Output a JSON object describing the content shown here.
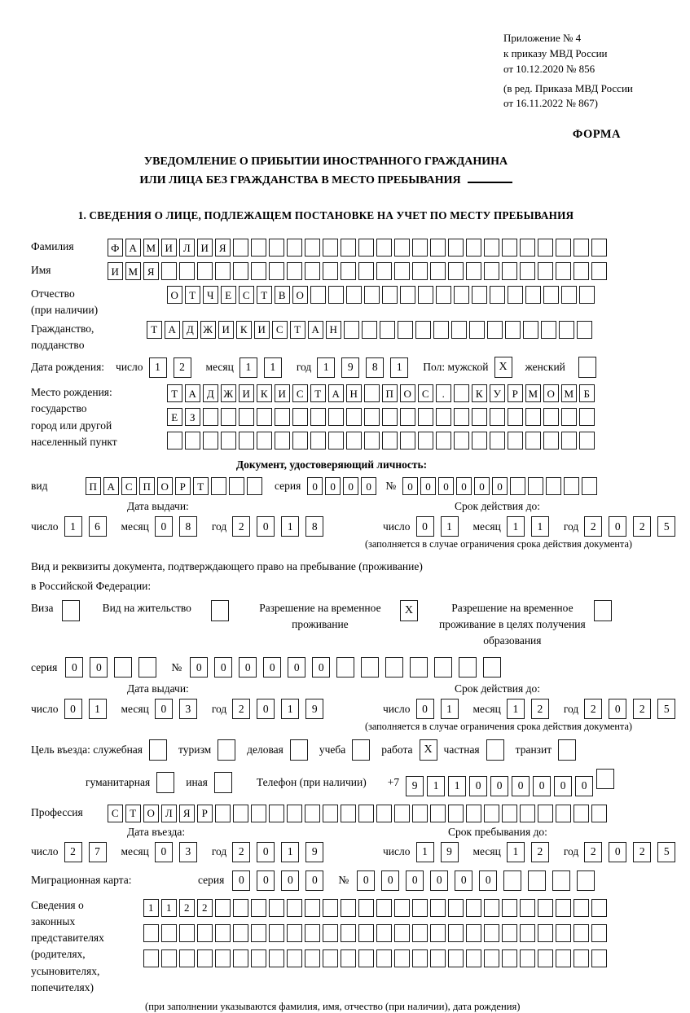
{
  "header": {
    "line1": "Приложение № 4",
    "line2": "к приказу МВД России",
    "line3": "от 10.12.2020 № 856",
    "line4": "(в ред. Приказа МВД России",
    "line5": "от 16.11.2022 № 867)",
    "form_label": "ФОРМА"
  },
  "title": {
    "line1": "УВЕДОМЛЕНИЕ О ПРИБЫТИИ ИНОСТРАННОГО ГРАЖДАНИНА",
    "line2": "ИЛИ ЛИЦА БЕЗ ГРАЖДАНСТВА В МЕСТО ПРЕБЫВАНИЯ"
  },
  "section1_heading": "1. СВЕДЕНИЯ О ЛИЦЕ, ПОДЛЕЖАЩЕМ ПОСТАНОВКЕ НА УЧЕТ ПО МЕСТУ ПРЕБЫВАНИЯ",
  "labels": {
    "day": "число",
    "month": "месяц",
    "year": "год",
    "series": "серия",
    "number": "№"
  },
  "surname": {
    "label": "Фамилия",
    "cells": {
      "text": "ФАМИЛИЯ",
      "count": 28
    }
  },
  "firstname": {
    "label": "Имя",
    "cells": {
      "text": "ИМЯ",
      "count": 28
    }
  },
  "patronymic": {
    "label1": "Отчество",
    "label2": "(при наличии)",
    "cells": {
      "text": "ОТЧЕСТВО",
      "count": 24
    }
  },
  "citizenship": {
    "label1": "Гражданство,",
    "label2": "подданство",
    "cells": {
      "text": "ТАДЖИКИСТАН",
      "count": 25
    }
  },
  "birth_date": {
    "label": "Дата рождения:",
    "day": "12",
    "month": "11",
    "year": "1981",
    "sex_label": "Пол: мужской",
    "male_value": "X",
    "female_label": "женский",
    "female_value": ""
  },
  "birth_place": {
    "label1": "Место рождения:",
    "label2": "государство",
    "label3": "город или другой",
    "label4": "населенный пункт",
    "row1": {
      "text": "ТАДЖИКИСТАН ПОС. КУРМОМБ",
      "count": 24
    },
    "row2": {
      "text": "ЕЗ",
      "count": 24
    },
    "row3": {
      "text": "",
      "count": 24
    }
  },
  "identity_doc": {
    "heading": "Документ, удостоверяющий личность:",
    "kind_label": "вид",
    "kind": {
      "text": "ПАСПОРТ",
      "count": 10
    },
    "series": {
      "text": "0000",
      "count": 4
    },
    "number": {
      "text": "000000",
      "count": 11
    },
    "issue_heading": "Дата выдачи:",
    "issue": {
      "day": "16",
      "month": "08",
      "year": "2018"
    },
    "valid_heading": "Срок действия до:",
    "valid": {
      "day": "01",
      "month": "11",
      "year": "2025"
    },
    "note": "(заполняется в случае ограничения срока действия документа)"
  },
  "residence_doc": {
    "line1": "Вид и реквизиты документа, подтверждающего право на пребывание (проживание)",
    "line2": "в Российской Федерации:",
    "options": [
      {
        "label": "Виза",
        "value": ""
      },
      {
        "label": "Вид на жительство",
        "value": ""
      },
      {
        "label": "Разрешение на временное проживание",
        "value": "X"
      },
      {
        "label": "Разрешение на временное проживание в целях получения образования",
        "value": ""
      }
    ],
    "series": {
      "text": "00",
      "count": 4
    },
    "number": {
      "text": "000000",
      "count": 13
    },
    "issue_heading": "Дата выдачи:",
    "issue": {
      "day": "01",
      "month": "03",
      "year": "2019"
    },
    "valid_heading": "Срок действия до:",
    "valid": {
      "day": "01",
      "month": "12",
      "year": "2025"
    },
    "note": "(заполняется в случае ограничения срока действия документа)"
  },
  "purpose": {
    "intro": "Цель въезда: служебная",
    "options_line1": [
      {
        "label": "туризм",
        "value": ""
      },
      {
        "label": "деловая",
        "value": ""
      },
      {
        "label": "учеба",
        "value": ""
      },
      {
        "label": "работа",
        "value": "X"
      },
      {
        "label": "частная",
        "value": ""
      },
      {
        "label": "транзит",
        "value": ""
      }
    ],
    "intro_value": "",
    "options_line2": [
      {
        "label": "гуманитарная",
        "value": ""
      },
      {
        "label": "иная",
        "value": ""
      }
    ],
    "phone_label": "Телефон (при наличии)",
    "phone_prefix": "+7",
    "phone": {
      "text": "911000000",
      "count": 10
    }
  },
  "profession": {
    "label": "Профессия",
    "cells": {
      "text": "СТОЛЯР",
      "count": 28
    }
  },
  "entry": {
    "issue_heading": "Дата въезда:",
    "issue": {
      "day": "27",
      "month": "03",
      "year": "2019"
    },
    "valid_heading": "Срок пребывания до:",
    "valid": {
      "day": "19",
      "month": "12",
      "year": "2025"
    }
  },
  "migration_card": {
    "label": "Миграционная карта:",
    "series": {
      "text": "0000",
      "count": 4
    },
    "number": {
      "text": "000000",
      "count": 10
    }
  },
  "representatives": {
    "label1": "Сведения о",
    "label2": "законных",
    "label3": "представителях",
    "label4": "(родителях,",
    "label5": "усыновителях,",
    "label6": "попечителях)",
    "row1": {
      "text": "1122",
      "count": 26
    },
    "row2": {
      "text": "",
      "count": 26
    },
    "row3": {
      "text": "",
      "count": 26
    },
    "note": "(при заполнении указываются фамилия, имя, отчество (при наличии), дата рождения)"
  }
}
